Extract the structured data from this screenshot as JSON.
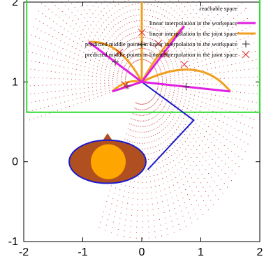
{
  "chart_data": {
    "type": "scatter",
    "title": "",
    "xlabel": "",
    "ylabel": "",
    "xlim": [
      -2,
      2
    ],
    "ylim": [
      -1,
      2
    ],
    "xticks": [
      -2,
      -1,
      0,
      1,
      2
    ],
    "yticks": [
      -1,
      0,
      1,
      2
    ],
    "xtick_labels": [
      "-2",
      "-1",
      "0",
      "1",
      "2"
    ],
    "ytick_labels": [
      "-1",
      "0",
      "1",
      "2"
    ],
    "grid": false,
    "legend_position": "top-right",
    "legend": [
      {
        "label": "reachable space",
        "marker": "dot",
        "color": "#cc3333"
      },
      {
        "label": "linear interpolation in the workspace",
        "marker": "line",
        "color": "#e020e0"
      },
      {
        "label": "linear interpolation in the joint space",
        "marker": "line",
        "color": "#f0a020"
      },
      {
        "label": "predicted middle points in linear interpolation in the workspace",
        "marker": "plus",
        "color": "#333333"
      },
      {
        "label": "predicted middle points in linear interpolation in the joint space",
        "marker": "cross",
        "color": "#dd2222"
      }
    ],
    "workspace_box": {
      "x": [
        -1.95,
        2.0
      ],
      "y": [
        0.62,
        2.1
      ],
      "color": "#33dd33"
    },
    "arm": {
      "points": [
        [
          0,
          1
        ],
        [
          0.88,
          0.52
        ],
        [
          0.1,
          -0.1
        ]
      ],
      "color": "#1a1acc"
    },
    "body": {
      "center": [
        -0.58,
        0.0
      ],
      "rx": 0.65,
      "ry": 0.27,
      "fill": "#b05020",
      "stroke": "#1a1acc",
      "head_fill": "#ffa500"
    },
    "origin": [
      0,
      1
    ],
    "targets": [
      [
        -0.9,
        1.5
      ],
      [
        0,
        2.0
      ],
      [
        0.72,
        1.7
      ],
      [
        1.5,
        0.88
      ],
      [
        -0.5,
        0.88
      ]
    ],
    "workspace_lines": {
      "color": "#e020e0",
      "series": [
        {
          "x": [
            0,
            -0.9
          ],
          "y": [
            1.0,
            1.5
          ]
        },
        {
          "x": [
            0,
            0.72
          ],
          "y": [
            1.0,
            1.7
          ]
        },
        {
          "x": [
            0,
            1.5
          ],
          "y": [
            1.0,
            0.88
          ]
        },
        {
          "x": [
            0,
            -0.5
          ],
          "y": [
            1.0,
            0.88
          ]
        }
      ]
    },
    "joint_arcs": {
      "color": "#f0a020",
      "series": [
        {
          "x": [
            -0.9,
            -0.55,
            -0.25,
            0
          ],
          "y": [
            1.5,
            1.52,
            1.35,
            1.0
          ]
        },
        {
          "x": [
            0,
            0,
            0,
            0
          ],
          "y": [
            2.0,
            1.7,
            1.35,
            1.0
          ]
        },
        {
          "x": [
            0.72,
            0.55,
            0.28,
            0
          ],
          "y": [
            1.7,
            1.58,
            1.38,
            1.0
          ]
        },
        {
          "x": [
            1.5,
            1.1,
            0.55,
            0
          ],
          "y": [
            0.88,
            1.25,
            1.2,
            1.0
          ]
        },
        {
          "x": [
            -0.5,
            -0.3,
            -0.12,
            0
          ],
          "y": [
            0.88,
            1.02,
            1.02,
            1.0
          ]
        }
      ]
    },
    "predicted_workspace_points": {
      "marker": "plus",
      "color": "#333333",
      "x": [
        -0.45,
        0,
        0.38,
        0.75,
        -0.25
      ],
      "y": [
        1.25,
        1.47,
        1.35,
        0.94,
        0.95
      ]
    },
    "predicted_joint_points": {
      "marker": "cross",
      "color": "#dd2222",
      "x": [
        -0.38,
        0,
        0.28,
        0.4,
        0.72,
        -0.28
      ],
      "y": [
        1.37,
        1.62,
        1.48,
        1.35,
        1.22,
        0.96
      ]
    }
  }
}
